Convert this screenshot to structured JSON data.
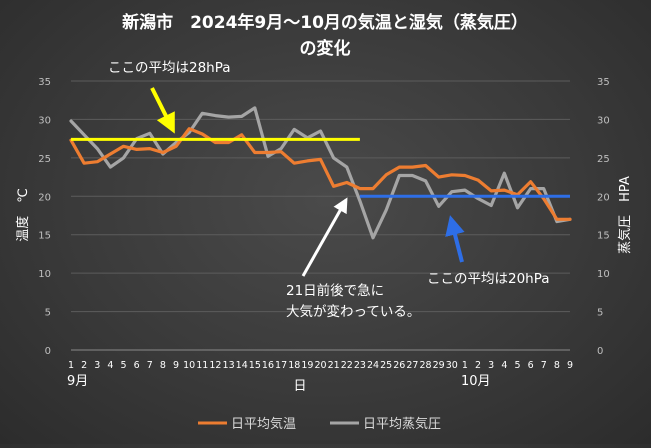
{
  "chart_data": {
    "type": "line",
    "title_line1": "新潟市　2024年9月～10月の気温と湿気（蒸気圧）",
    "title_line2": "の変化",
    "xlabel": "日",
    "ylabel_left": "温度　℃",
    "ylabel_right": "蒸気圧　HPA",
    "ylim": [
      0,
      35
    ],
    "yticks": [
      0,
      5,
      10,
      15,
      20,
      25,
      30,
      35
    ],
    "x_labels": [
      "1",
      "2",
      "3",
      "4",
      "5",
      "6",
      "7",
      "8",
      "9",
      "10",
      "11",
      "12",
      "13",
      "14",
      "15",
      "16",
      "17",
      "18",
      "19",
      "20",
      "21",
      "22",
      "23",
      "24",
      "25",
      "26",
      "27",
      "28",
      "29",
      "30",
      "1",
      "2",
      "3",
      "4",
      "5",
      "6",
      "7",
      "8",
      "9"
    ],
    "month_labels": [
      {
        "text": "9月",
        "index": 0
      },
      {
        "text": "10月",
        "index": 30
      }
    ],
    "series": [
      {
        "name": "日平均気温",
        "color": "#ed7d31",
        "values": [
          27.3,
          24.3,
          24.5,
          25.5,
          26.5,
          26.1,
          26.2,
          25.7,
          26.5,
          28.8,
          28.1,
          27.0,
          27.0,
          28.0,
          25.7,
          25.7,
          25.8,
          24.3,
          24.6,
          24.8,
          21.3,
          21.8,
          21.0,
          21.0,
          22.8,
          23.8,
          23.8,
          24.0,
          22.5,
          22.8,
          22.7,
          22.1,
          20.7,
          20.8,
          20.2,
          21.9,
          19.7,
          17.0,
          17.0
        ]
      },
      {
        "name": "日平均蒸気圧",
        "color": "#a5a5a5",
        "values": [
          29.8,
          28.0,
          26.2,
          23.8,
          25.0,
          27.5,
          28.2,
          25.5,
          27.0,
          28.3,
          30.8,
          30.5,
          30.3,
          30.4,
          31.5,
          25.2,
          26.2,
          28.7,
          27.6,
          28.5,
          25.0,
          23.8,
          19.4,
          14.6,
          18.2,
          22.7,
          22.7,
          22.0,
          18.7,
          20.6,
          20.8,
          19.7,
          18.8,
          23.0,
          18.5,
          21.0,
          21.0,
          16.7,
          17.0
        ]
      }
    ],
    "reference_lines": [
      {
        "value": 27.4,
        "from_index": 0,
        "to_index": 22,
        "color": "#ffff00",
        "label": "ここの平均は28hPa"
      },
      {
        "value": 20.0,
        "from_index": 22,
        "to_index": 38,
        "color": "#2e6ee6",
        "label": "ここの平均は20hPa"
      }
    ],
    "annotation_main": [
      "21日前後で急に",
      "大気が変わっている。"
    ],
    "grid": true,
    "legend_position": "bottom"
  }
}
